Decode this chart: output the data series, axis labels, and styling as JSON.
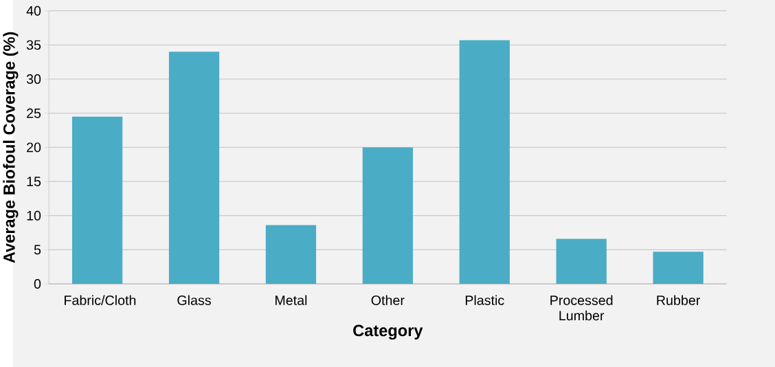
{
  "chart_data": {
    "type": "bar",
    "xlabel": "Category",
    "ylabel": "Average Biofoul Coverage (%)",
    "categories": [
      "Fabric/Cloth",
      "Glass",
      "Metal",
      "Other",
      "Plastic",
      "Processed Lumber",
      "Rubber"
    ],
    "values": [
      24.5,
      34.0,
      8.6,
      20.0,
      35.7,
      6.6,
      4.7
    ],
    "color": "#4bacc6",
    "ylim": [
      0,
      40
    ],
    "yticks": [
      0,
      5,
      10,
      15,
      20,
      25,
      30,
      35,
      40
    ],
    "grid": "y"
  }
}
